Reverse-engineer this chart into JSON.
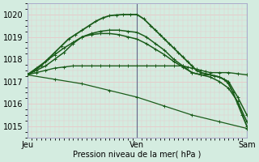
{
  "xlabel": "Pression niveau de la mer( hPa )",
  "bg_color": "#d4ece0",
  "grid_color": "#e8c8c8",
  "line_color": "#1a5c1a",
  "ylim": [
    1014.5,
    1020.5
  ],
  "yticks": [
    1015,
    1016,
    1017,
    1018,
    1019,
    1020
  ],
  "day_labels": [
    "Jeu",
    "Ven",
    "Sam"
  ],
  "day_positions": [
    0,
    48,
    96
  ],
  "vline_color": "#666688",
  "lines": [
    {
      "x": [
        0,
        4,
        8,
        12,
        16,
        20,
        24,
        28,
        32,
        36,
        40,
        44,
        48,
        52,
        56,
        60,
        64,
        68,
        70,
        72,
        74,
        76,
        78,
        80,
        84,
        88,
        92,
        96
      ],
      "y": [
        1017.3,
        1017.4,
        1017.5,
        1017.6,
        1017.65,
        1017.7,
        1017.7,
        1017.7,
        1017.7,
        1017.7,
        1017.7,
        1017.7,
        1017.7,
        1017.7,
        1017.7,
        1017.7,
        1017.7,
        1017.7,
        1017.65,
        1017.6,
        1017.55,
        1017.5,
        1017.45,
        1017.4,
        1017.4,
        1017.4,
        1017.35,
        1017.3
      ],
      "marker": "+",
      "lw": 1.0
    },
    {
      "x": [
        0,
        4,
        8,
        12,
        16,
        20,
        24,
        28,
        32,
        36,
        40,
        44,
        48,
        52,
        56,
        60,
        64,
        68,
        72,
        76,
        80,
        84,
        88,
        92,
        96
      ],
      "y": [
        1017.3,
        1017.5,
        1017.7,
        1018.0,
        1018.3,
        1018.7,
        1019.0,
        1019.15,
        1019.25,
        1019.3,
        1019.3,
        1019.25,
        1019.2,
        1019.0,
        1018.7,
        1018.4,
        1018.0,
        1017.7,
        1017.4,
        1017.3,
        1017.3,
        1017.2,
        1017.0,
        1016.3,
        1015.5
      ],
      "marker": "+",
      "lw": 1.1
    },
    {
      "x": [
        0,
        4,
        8,
        12,
        16,
        20,
        24,
        28,
        32,
        36,
        40,
        44,
        48,
        52,
        56,
        60,
        64,
        68,
        72,
        76,
        80,
        84,
        88,
        92,
        96
      ],
      "y": [
        1017.3,
        1017.6,
        1017.9,
        1018.2,
        1018.5,
        1018.75,
        1019.0,
        1019.1,
        1019.15,
        1019.15,
        1019.1,
        1019.0,
        1018.9,
        1018.7,
        1018.45,
        1018.2,
        1017.9,
        1017.65,
        1017.4,
        1017.3,
        1017.2,
        1017.0,
        1016.7,
        1016.1,
        1015.2
      ],
      "marker": "+",
      "lw": 1.1
    },
    {
      "x": [
        0,
        3,
        6,
        9,
        12,
        15,
        18,
        21,
        24,
        27,
        30,
        33,
        36,
        39,
        42,
        45,
        48,
        51,
        54,
        56,
        58,
        60,
        62,
        64,
        66,
        68,
        70,
        72,
        74,
        76,
        78,
        80,
        82,
        84,
        86,
        88,
        90,
        92,
        94,
        96
      ],
      "y": [
        1017.3,
        1017.5,
        1017.7,
        1018.0,
        1018.3,
        1018.6,
        1018.9,
        1019.1,
        1019.3,
        1019.5,
        1019.7,
        1019.85,
        1019.95,
        1019.98,
        1020.0,
        1020.0,
        1020.0,
        1019.8,
        1019.5,
        1019.3,
        1019.1,
        1018.9,
        1018.7,
        1018.5,
        1018.3,
        1018.1,
        1017.9,
        1017.7,
        1017.5,
        1017.4,
        1017.35,
        1017.3,
        1017.25,
        1017.2,
        1017.1,
        1016.9,
        1016.5,
        1016.0,
        1015.5,
        1015.0
      ],
      "marker": "+",
      "lw": 1.3
    },
    {
      "x": [
        0,
        12,
        24,
        36,
        48,
        60,
        72,
        84,
        96
      ],
      "y": [
        1017.3,
        1017.1,
        1016.9,
        1016.6,
        1016.3,
        1015.9,
        1015.5,
        1015.2,
        1014.9
      ],
      "marker": "+",
      "lw": 0.9
    }
  ]
}
